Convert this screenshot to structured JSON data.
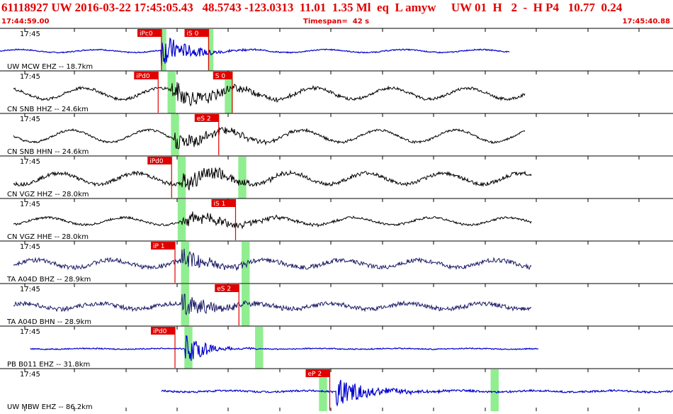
{
  "header": {
    "event_line": "61118927 UW 2016-03-22 17:45:05.43   48.5743 -123.0313  11.01  1.35 Ml  eq  L amyw     UW 01  H   2  -  H P4   10.77  0.24",
    "start_time": "17:44:59.00",
    "timespan": "Timespan=  42 s",
    "end_time": "17:45:40.88"
  },
  "colors": {
    "header_red": "#e00000",
    "pick_red": "#e00000",
    "green_window": "#90ee90",
    "trace_blue": "#0000cc",
    "trace_black": "#000000",
    "trace_navy": "#1a1a66"
  },
  "tick_minutes": [
    "17:45",
    "17:45",
    "17:45",
    "17:45",
    "17:45",
    "17:45",
    "17:45",
    "17:45",
    "17:45"
  ],
  "channels": [
    {
      "label": "UW MCW EHZ -- 18.7km",
      "color": "blue",
      "amp": 0.08,
      "noise": 0.03,
      "start": 0.0,
      "end": 0.757,
      "onset": 0.24,
      "burst": 0.9,
      "decay": 0.04,
      "picks": [
        {
          "text": "iPc0",
          "pos": 0.24
        },
        {
          "text": "iS 0",
          "pos": 0.31
        }
      ],
      "greens": [
        0.243,
        0.313
      ],
      "green_width": 0.008
    },
    {
      "label": "CN SNB HHZ -- 24.6km",
      "color": "black",
      "amp": 0.3,
      "noise": 0.08,
      "start": 0.02,
      "end": 0.78,
      "onset": 0.255,
      "burst": 0.6,
      "decay": 0.08,
      "picks": [
        {
          "text": "iPd0",
          "pos": 0.235
        },
        {
          "text": "S 0",
          "pos": 0.345
        }
      ],
      "greens": [
        0.255,
        0.34
      ],
      "green_width": 0.012
    },
    {
      "label": "CN SNB HHN -- 24.6km",
      "color": "black",
      "amp": 0.33,
      "noise": 0.06,
      "start": 0.02,
      "end": 0.78,
      "onset": 0.26,
      "burst": 0.55,
      "decay": 0.08,
      "picks": [
        {
          "text": "eS 2",
          "pos": 0.325
        }
      ],
      "greens": [
        0.26
      ],
      "green_width": 0.012
    },
    {
      "label": "CN VGZ HHZ -- 28.0km",
      "color": "black",
      "amp": 0.3,
      "noise": 0.1,
      "start": 0.02,
      "end": 0.79,
      "onset": 0.27,
      "burst": 0.6,
      "decay": 0.07,
      "picks": [
        {
          "text": "iPd0",
          "pos": 0.255
        }
      ],
      "greens": [
        0.27,
        0.36
      ],
      "green_width": 0.012
    },
    {
      "label": "CN VGZ HHE -- 28.0km",
      "color": "black",
      "amp": 0.2,
      "noise": 0.06,
      "start": 0.02,
      "end": 0.79,
      "onset": 0.27,
      "burst": 0.5,
      "decay": 0.08,
      "picks": [
        {
          "text": "iS 1",
          "pos": 0.35
        }
      ],
      "greens": [
        0.27
      ],
      "green_width": 0.012
    },
    {
      "label": "TA A04D BHZ -- 28.9km",
      "color": "navy",
      "amp": 0.2,
      "noise": 0.12,
      "start": 0.02,
      "end": 0.79,
      "onset": 0.27,
      "burst": 0.65,
      "decay": 0.05,
      "picks": [
        {
          "text": "iP 1",
          "pos": 0.26
        }
      ],
      "greens": [
        0.275,
        0.365
      ],
      "green_width": 0.012
    },
    {
      "label": "TA A04D BHN -- 28.9km",
      "color": "navy",
      "amp": 0.15,
      "noise": 0.12,
      "start": 0.02,
      "end": 0.79,
      "onset": 0.27,
      "burst": 0.7,
      "decay": 0.05,
      "picks": [
        {
          "text": "eS 2",
          "pos": 0.355
        }
      ],
      "greens": [
        0.275,
        0.365
      ],
      "green_width": 0.012
    },
    {
      "label": "PB B011 EHZ -- 31.8km",
      "color": "blue",
      "amp": 0.02,
      "noise": 0.03,
      "start": 0.045,
      "end": 0.8,
      "onset": 0.275,
      "burst": 0.85,
      "decay": 0.03,
      "picks": [
        {
          "text": "iPd0",
          "pos": 0.26
        }
      ],
      "greens": [
        0.28,
        0.385
      ],
      "green_width": 0.012
    },
    {
      "label": "UW MBW EHZ -- 86.2km",
      "color": "blue",
      "amp": 0.04,
      "noise": 0.05,
      "start": 0.24,
      "end": 1.0,
      "onset": 0.5,
      "burst": 0.8,
      "decay": 0.05,
      "picks": [
        {
          "text": "eP 2",
          "pos": 0.49
        }
      ],
      "greens": [
        0.48,
        0.735
      ],
      "green_width": 0.012
    }
  ]
}
